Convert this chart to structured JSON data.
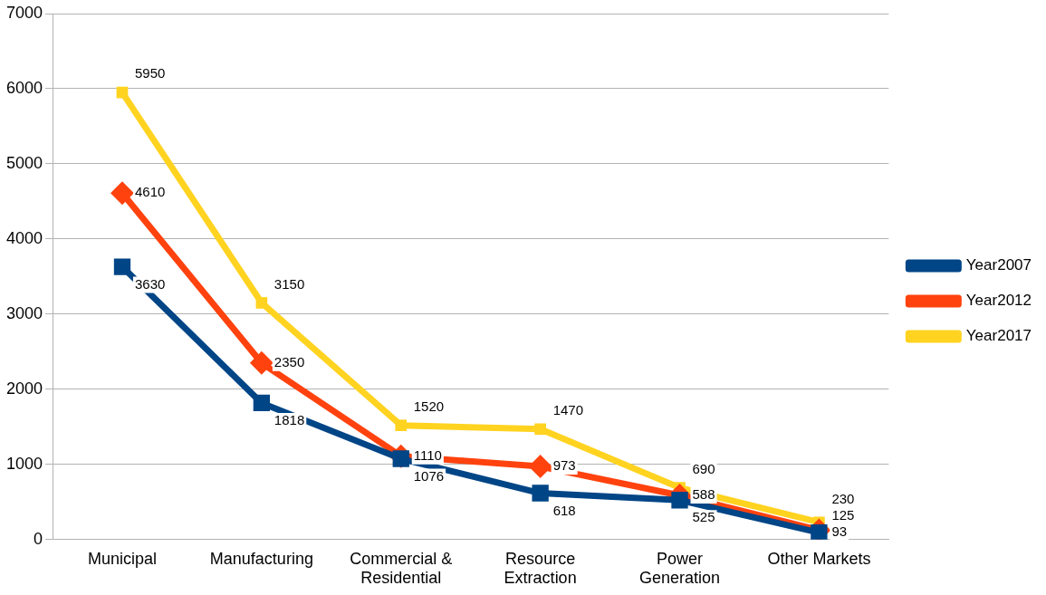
{
  "chart_data": {
    "type": "line",
    "categories": [
      "Municipal",
      "Manufacturing",
      "Commercial & Residential",
      "Resource Extraction",
      "Power Generation",
      "Other Markets"
    ],
    "series": [
      {
        "name": "Year2007",
        "color": "#004586",
        "marker": "square",
        "values": [
          3630,
          1818,
          1076,
          618,
          525,
          93
        ]
      },
      {
        "name": "Year2012",
        "color": "#ff420e",
        "marker": "diamond",
        "values": [
          4610,
          2350,
          1110,
          973,
          588,
          125
        ]
      },
      {
        "name": "Year2017",
        "color": "#ffd320",
        "marker": "square",
        "values": [
          5950,
          3150,
          1520,
          1470,
          690,
          230
        ]
      }
    ],
    "ylim": [
      0,
      7000
    ],
    "yticks": [
      0,
      1000,
      2000,
      3000,
      4000,
      5000,
      6000,
      7000
    ],
    "grid": "y",
    "legend": "right",
    "data_labels": true
  }
}
